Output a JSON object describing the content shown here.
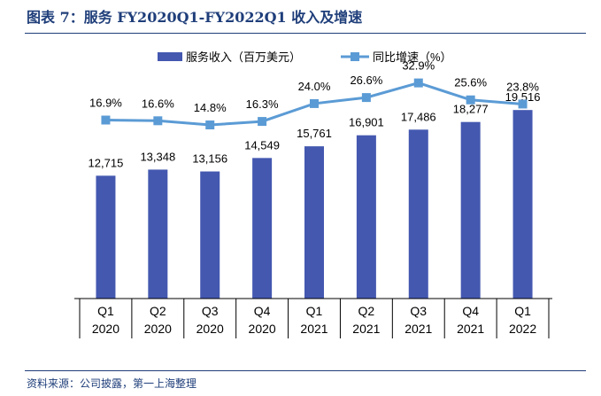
{
  "title": "图表 7：服务 FY2020Q1-FY2022Q1 收入及增速",
  "source": "资料来源：公司披露，第一上海整理",
  "colors": {
    "bar": "#4458B0",
    "line": "#5B9BD5",
    "title": "#1F3E7A"
  },
  "chart_data": {
    "type": "bar",
    "categories": [
      [
        "Q1",
        "2020"
      ],
      [
        "Q2",
        "2020"
      ],
      [
        "Q3",
        "2020"
      ],
      [
        "Q4",
        "2020"
      ],
      [
        "Q1",
        "2021"
      ],
      [
        "Q2",
        "2021"
      ],
      [
        "Q3",
        "2021"
      ],
      [
        "Q4",
        "2021"
      ],
      [
        "Q1",
        "2022"
      ]
    ],
    "series": [
      {
        "name": "服务收入（百万美元）",
        "type": "bar",
        "axis": "left",
        "values": [
          12715,
          13348,
          13156,
          14549,
          15761,
          16901,
          17486,
          18277,
          19516
        ],
        "labels": [
          "12,715",
          "13,348",
          "13,156",
          "14,549",
          "15,761",
          "16,901",
          "17,486",
          "18,277",
          "19,516"
        ]
      },
      {
        "name": "同比增速（%）",
        "type": "line",
        "axis": "right",
        "values": [
          16.9,
          16.6,
          14.8,
          16.3,
          24.0,
          26.6,
          32.9,
          25.6,
          23.8
        ],
        "labels": [
          "16.9%",
          "16.6%",
          "14.8%",
          "16.3%",
          "24.0%",
          "26.6%",
          "32.9%",
          "25.6%",
          "23.8%"
        ]
      }
    ],
    "ylim_left": [
      0,
      21000
    ],
    "ylim_right": [
      -60,
      40
    ],
    "legend_position": "top-center",
    "grid": false
  }
}
